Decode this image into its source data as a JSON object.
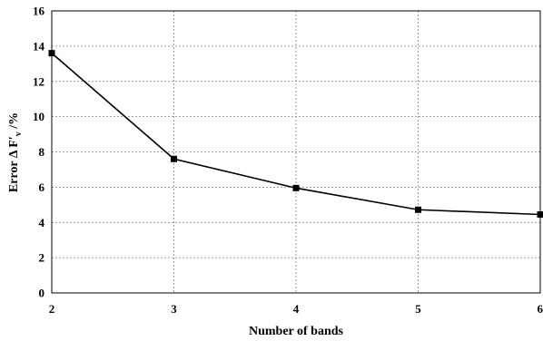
{
  "chart_data": {
    "type": "line",
    "title": "",
    "xlabel": "Number of bands",
    "ylabel_parts": {
      "prefix": "Error Δ F",
      "prime": "′",
      "sub": "v",
      "suffix": " /%"
    },
    "x": [
      2,
      3,
      4,
      5,
      6
    ],
    "y": [
      13.6,
      7.6,
      5.95,
      4.72,
      4.45
    ],
    "xlim": [
      2,
      6
    ],
    "ylim": [
      0,
      16
    ],
    "x_ticks": [
      2,
      3,
      4,
      5,
      6
    ],
    "y_ticks": [
      0,
      2,
      4,
      6,
      8,
      10,
      12,
      14,
      16
    ],
    "grid": true,
    "marker": "square",
    "line_color": "#000000",
    "marker_color": "#000000"
  }
}
